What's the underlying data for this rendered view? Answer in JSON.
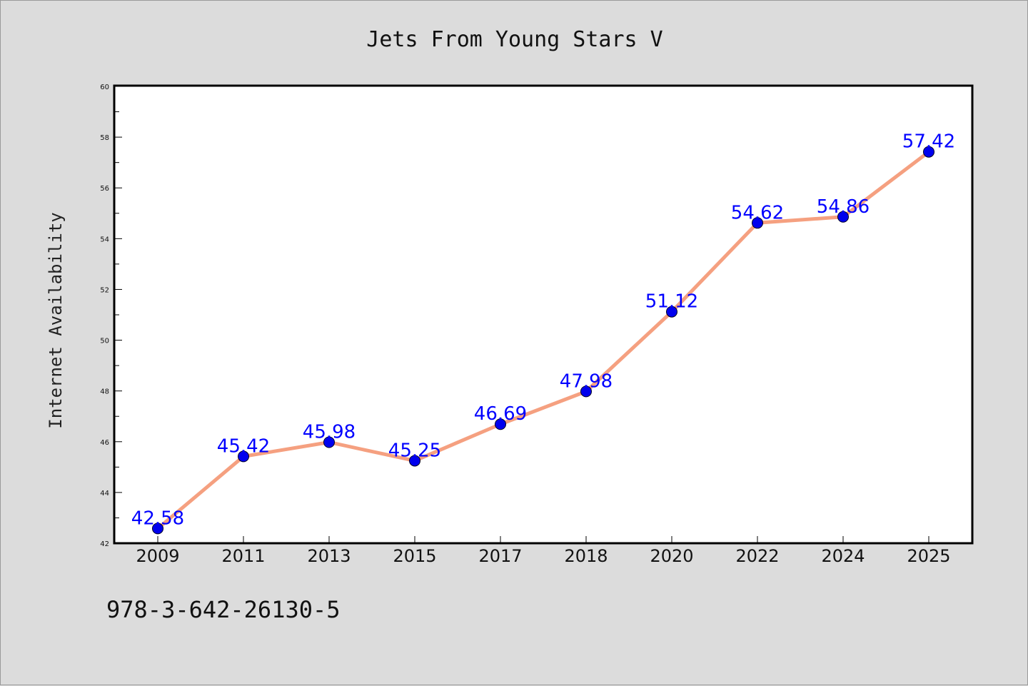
{
  "chart_data": {
    "type": "line",
    "title": "Jets From Young Stars V",
    "xlabel": "",
    "ylabel": "Internet Availability",
    "categories": [
      "2009",
      "2011",
      "2013",
      "2015",
      "2017",
      "2018",
      "2020",
      "2022",
      "2024",
      "2025"
    ],
    "series": [
      {
        "values": [
          42.58,
          45.42,
          45.98,
          45.25,
          46.69,
          47.98,
          51.12,
          54.62,
          54.86,
          57.42
        ],
        "line_color": "#f5a080",
        "marker_color": "#0000ee",
        "label_color": "#0000ff"
      }
    ],
    "ylim": [
      42,
      60
    ],
    "yticks": [
      42,
      44,
      46,
      48,
      50,
      52,
      54,
      56,
      58,
      60
    ],
    "grid": false,
    "legend": "none",
    "data_labels": true
  },
  "footer": {
    "text": "978-3-642-26130-5"
  },
  "colors": {
    "figure_background": "#dcdcdc",
    "plot_background": "#ffffff"
  }
}
